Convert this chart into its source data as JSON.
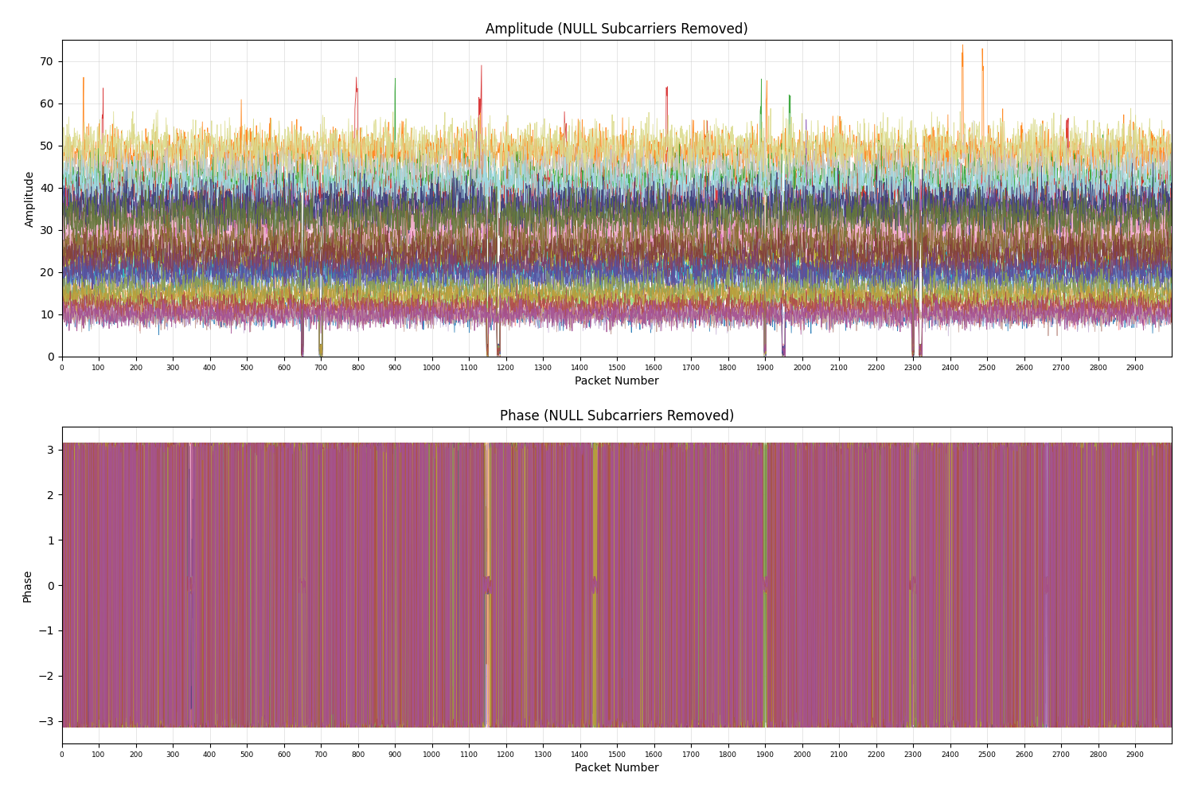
{
  "title_amplitude": "Amplitude (NULL Subcarriers Removed)",
  "title_phase": "Phase (NULL Subcarriers Removed)",
  "xlabel": "Packet Number",
  "ylabel_amplitude": "Amplitude",
  "ylabel_phase": "Phase",
  "n_packets": 3000,
  "n_subcarriers": 30,
  "amplitude_ylim": [
    0,
    75
  ],
  "phase_ylim": [
    -3.5,
    3.5
  ],
  "amplitude_yticks": [
    0,
    10,
    20,
    30,
    40,
    50,
    60,
    70
  ],
  "phase_yticks": [
    -3,
    -2,
    -1,
    0,
    1,
    2,
    3
  ],
  "xtick_step": 100,
  "figsize": [
    15.0,
    10.0
  ],
  "dpi": 100,
  "background_color": "#ffffff",
  "grid_color": "#cccccc",
  "seed": 42,
  "colors": [
    "#1f77b4",
    "#ff7f0e",
    "#2ca02c",
    "#d62728",
    "#9467bd",
    "#8c564b",
    "#e377c2",
    "#7f7f7f",
    "#bcbd22",
    "#17becf",
    "#aec7e8",
    "#ffbb78",
    "#98df8a",
    "#ff9896",
    "#c5b0d5",
    "#c49c94",
    "#f7b6d2",
    "#c7c7c7",
    "#dbdb8d",
    "#9edae5",
    "#393b79",
    "#637939",
    "#8c6d31",
    "#843c39",
    "#7b4173",
    "#5254a3",
    "#8ca252",
    "#bd9e39",
    "#ad494a",
    "#a55194"
  ],
  "amp_bases": [
    10,
    48,
    42,
    38,
    35,
    32,
    28,
    25,
    22,
    20,
    18,
    15,
    13,
    11,
    10,
    10,
    30,
    45,
    50,
    40,
    36,
    33,
    27,
    24,
    21,
    19,
    16,
    14,
    12,
    10
  ],
  "amp_noise_scales": [
    1.5,
    3,
    3,
    3,
    3,
    3,
    2.5,
    2.5,
    2,
    2,
    2,
    1.5,
    1.5,
    1.5,
    1.5,
    1.5,
    3,
    3,
    3,
    3,
    3,
    3,
    2.5,
    2.5,
    2,
    2,
    2,
    1.5,
    1.5,
    1.5
  ],
  "dip_centers": [
    650,
    700,
    1150,
    1180,
    1900,
    1950,
    2300,
    2320
  ],
  "dip_widths": [
    3,
    5,
    3,
    5,
    3,
    5,
    3,
    5
  ]
}
